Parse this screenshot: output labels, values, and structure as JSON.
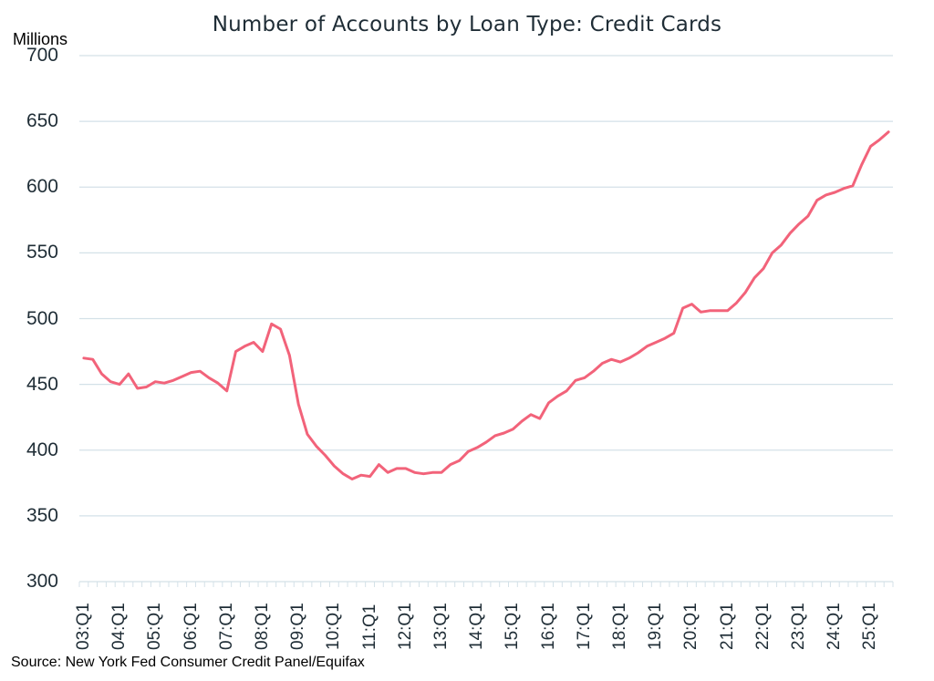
{
  "chart_data": {
    "type": "line",
    "title": "Number of Accounts by Loan Type: Credit Cards",
    "ylabel": "Millions",
    "xlabel": "",
    "ylim": [
      300,
      700
    ],
    "yticks": [
      300,
      350,
      400,
      450,
      500,
      550,
      600,
      650,
      700
    ],
    "xtick_labels": [
      "03:Q1",
      "04:Q1",
      "05:Q1",
      "06:Q1",
      "07:Q1",
      "08:Q1",
      "09:Q1",
      "10:Q1",
      "11:Q1",
      "12:Q1",
      "13:Q1",
      "14:Q1",
      "15:Q1",
      "16:Q1",
      "17:Q1",
      "18:Q1",
      "19:Q1",
      "20:Q1",
      "21:Q1",
      "22:Q1",
      "23:Q1",
      "24:Q1",
      "25:Q1"
    ],
    "grid": "horizontal",
    "legend": "none",
    "line_color": "#f2637a",
    "series": [
      {
        "name": "Credit Cards",
        "start": "03:Q1",
        "end": "25:Q3",
        "values": [
          470,
          469,
          458,
          452,
          450,
          458,
          447,
          448,
          452,
          451,
          453,
          456,
          459,
          460,
          455,
          451,
          445,
          475,
          479,
          482,
          475,
          496,
          492,
          472,
          435,
          412,
          403,
          396,
          388,
          382,
          378,
          381,
          380,
          389,
          383,
          386,
          386,
          383,
          382,
          383,
          383,
          389,
          392,
          399,
          402,
          406,
          411,
          413,
          416,
          422,
          427,
          424,
          436,
          441,
          445,
          453,
          455,
          460,
          466,
          469,
          467,
          470,
          474,
          479,
          482,
          485,
          489,
          508,
          511,
          505,
          506,
          506,
          506,
          512,
          520,
          531,
          538,
          550,
          556,
          565,
          572,
          578,
          590,
          594,
          596,
          599,
          601,
          617,
          631,
          636,
          642
        ]
      }
    ]
  },
  "header": {
    "title": "Number of Accounts by Loan Type: Credit Cards",
    "unit": "Millions"
  },
  "footer": {
    "source": "Source: New York Fed Consumer Credit Panel/Equifax"
  }
}
